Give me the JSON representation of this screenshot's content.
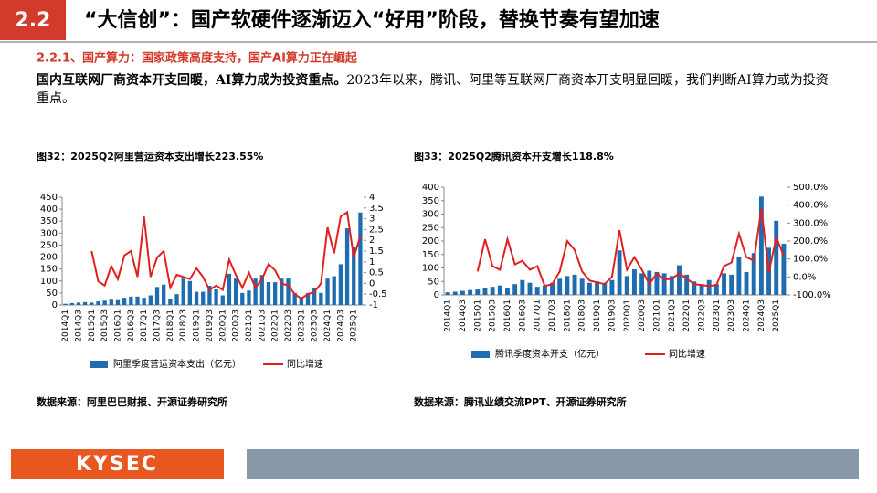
{
  "header": {
    "number": "2.2",
    "title": "“大信创”：国产软硬件逐渐迈入“好用”阶段，替换节奏有望加速"
  },
  "subheading": "2.2.1、国产算力：国家政策高度支持，国产AI算力正在崛起",
  "paragraph": {
    "bold": "国内互联网厂商资本开支回暖，AI算力成为投资重点。",
    "text": "2023年以来，腾讯、阿里等互联网厂商资本开支明显回暖，我们判断AI算力或为投资重点。"
  },
  "logo": "KYSEC",
  "chart_data": [
    {
      "type": "combo",
      "title": "图32：2025Q2阿里营运资本支出增长223.55%",
      "source": "数据来源：阿里巴巴财报、开源证券研究所",
      "categories": [
        "2014Q1",
        null,
        "2014Q3",
        null,
        "2015Q1",
        null,
        "2015Q3",
        null,
        "2016Q1",
        null,
        "2016Q3",
        null,
        "2017Q1",
        null,
        "2017Q3",
        null,
        "2018Q1",
        null,
        "2018Q3",
        null,
        "2019Q1",
        null,
        "2019Q3",
        null,
        "2020Q1",
        null,
        "2020Q3",
        null,
        "2021Q1",
        null,
        "2021Q3",
        null,
        "2022Q1",
        null,
        "2022Q3",
        null,
        "2023Q1",
        null,
        "2023Q3",
        null,
        "2024Q1",
        null,
        "2024Q3",
        null,
        "2025Q1",
        null
      ],
      "series": [
        {
          "name": "阿里季度营运资本支出（亿元）",
          "type": "bar",
          "color": "#1f6cb0",
          "values": [
            5,
            8,
            10,
            12,
            10,
            15,
            18,
            22,
            20,
            30,
            35,
            35,
            30,
            40,
            75,
            85,
            25,
            45,
            110,
            100,
            55,
            55,
            80,
            65,
            40,
            130,
            110,
            50,
            60,
            110,
            125,
            95,
            95,
            110,
            110,
            50,
            30,
            50,
            70,
            50,
            110,
            120,
            170,
            320,
            240,
            386
          ]
        },
        {
          "name": "同比增速",
          "type": "line",
          "axis": "y2",
          "color": "#e02020",
          "values": [
            null,
            null,
            null,
            null,
            1.5,
            0.1,
            -0.1,
            0.8,
            0.2,
            1.3,
            1.5,
            0.3,
            3.1,
            0.3,
            1.2,
            1.5,
            -0.2,
            0.4,
            0.3,
            0.2,
            0.7,
            0.3,
            -0.3,
            -0.1,
            -0.3,
            1.1,
            0.4,
            -0.2,
            0.5,
            -0.2,
            0.2,
            0.9,
            0.6,
            0.0,
            -0.1,
            -0.5,
            -0.7,
            -0.5,
            -0.4,
            0.0,
            2.6,
            1.4,
            3.1,
            3.3,
            1.2,
            2.2
          ]
        }
      ],
      "ylim": [
        0,
        450
      ],
      "yticks": [
        0,
        50,
        100,
        150,
        200,
        250,
        300,
        350,
        400,
        450
      ],
      "y2lim": [
        -1,
        4
      ],
      "y2ticks": [
        -1,
        -0.5,
        0,
        0.5,
        1,
        1.5,
        2,
        2.5,
        3,
        3.5,
        4
      ]
    },
    {
      "type": "combo",
      "title": "图33：2025Q2腾讯资本开支增长118.8%",
      "source": "数据来源：腾讯业绩交流PPT、开源证券研究所",
      "categories": [
        "2014Q1",
        null,
        "2014Q3",
        null,
        "2015Q1",
        null,
        "2015Q3",
        null,
        "2016Q1",
        null,
        "2016Q3",
        null,
        "2017Q1",
        null,
        "2017Q3",
        null,
        "2018Q1",
        null,
        "2018Q3",
        null,
        "2019Q1",
        null,
        "2019Q3",
        null,
        "2020Q1",
        null,
        "2020Q3",
        null,
        "2021Q1",
        null,
        "2021Q3",
        null,
        "2022Q1",
        null,
        "2022Q3",
        null,
        "2023Q1",
        null,
        "2023Q3",
        null,
        "2024Q1",
        null,
        "2024Q3",
        null,
        "2025Q1",
        null
      ],
      "series": [
        {
          "name": "腾讯季度资本开支（亿元）",
          "type": "bar",
          "color": "#1f6cb0",
          "values": [
            10,
            12,
            15,
            18,
            20,
            25,
            30,
            35,
            25,
            40,
            55,
            45,
            30,
            35,
            45,
            60,
            70,
            75,
            60,
            45,
            50,
            45,
            55,
            165,
            70,
            95,
            80,
            90,
            85,
            80,
            70,
            110,
            75,
            50,
            40,
            55,
            40,
            80,
            75,
            140,
            85,
            155,
            365,
            175,
            275,
            190
          ]
        },
        {
          "name": "同比增速",
          "type": "line",
          "axis": "y2",
          "color": "#e02020",
          "values": [
            null,
            null,
            null,
            null,
            30,
            210,
            60,
            40,
            210,
            70,
            90,
            40,
            60,
            -50,
            -40,
            30,
            200,
            150,
            30,
            -20,
            -30,
            -40,
            0,
            260,
            40,
            110,
            40,
            -40,
            20,
            -15,
            -10,
            20,
            -10,
            -40,
            -45,
            -50,
            -45,
            60,
            80,
            240,
            110,
            90,
            380,
            25,
            220,
            118.8
          ]
        }
      ],
      "ylim": [
        0,
        400
      ],
      "yticks": [
        0,
        50,
        100,
        150,
        200,
        250,
        300,
        350,
        400
      ],
      "y2lim": [
        -100,
        500
      ],
      "y2ticks": [
        {
          "value": -100,
          "label": "-100.0%"
        },
        {
          "value": 0,
          "label": "0.0%"
        },
        {
          "value": 100,
          "label": "100.0%"
        },
        {
          "value": 200,
          "label": "200.0%"
        },
        {
          "value": 300,
          "label": "300.0%"
        },
        {
          "value": 400,
          "label": "400.0%"
        },
        {
          "value": 500,
          "label": "500.0%"
        }
      ]
    }
  ]
}
